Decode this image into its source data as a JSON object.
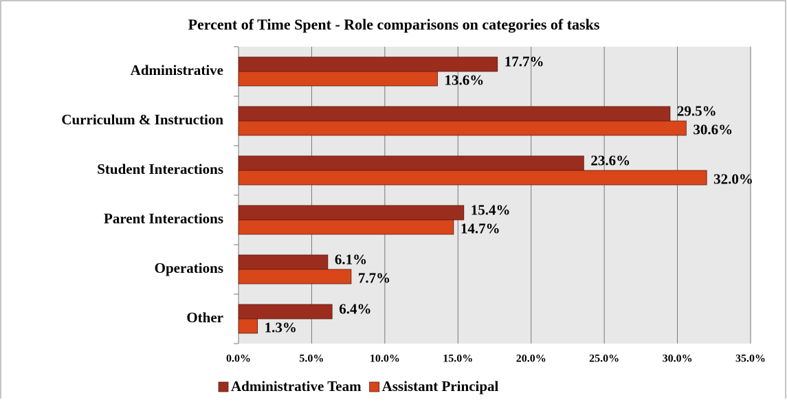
{
  "chart_data": {
    "type": "hbar",
    "title": "Percent of Time Spent - Role comparisons on categories of tasks",
    "categories": [
      "Administrative",
      "Curriculum & Instruction",
      "Student Interactions",
      "Parent Interactions",
      "Operations",
      "Other"
    ],
    "series": [
      {
        "name": "Administrative Team",
        "color": "#9b2d1f",
        "values": [
          17.7,
          29.5,
          23.6,
          15.4,
          6.1,
          6.4
        ],
        "value_labels": [
          "17.7%",
          "29.5%",
          "23.6%",
          "15.4%",
          "6.1%",
          "6.4%"
        ]
      },
      {
        "name": "Assistant Principal",
        "color": "#d9461a",
        "values": [
          13.6,
          30.6,
          32.0,
          14.7,
          7.7,
          1.3
        ],
        "value_labels": [
          "13.6%",
          "30.6%",
          "32.0%",
          "14.7%",
          "7.7%",
          "1.3%"
        ]
      }
    ],
    "xlim": [
      0,
      35
    ],
    "xticks": [
      {
        "value": 0,
        "label": "0.0%"
      },
      {
        "value": 5,
        "label": "5.0%"
      },
      {
        "value": 10,
        "label": "10.0%"
      },
      {
        "value": 15,
        "label": "15.0%"
      },
      {
        "value": 20,
        "label": "20.0%"
      },
      {
        "value": 25,
        "label": "25.0%"
      },
      {
        "value": 30,
        "label": "30.0%"
      },
      {
        "value": 35,
        "label": "35.0%"
      }
    ],
    "grid": true,
    "legend": "bottom"
  }
}
